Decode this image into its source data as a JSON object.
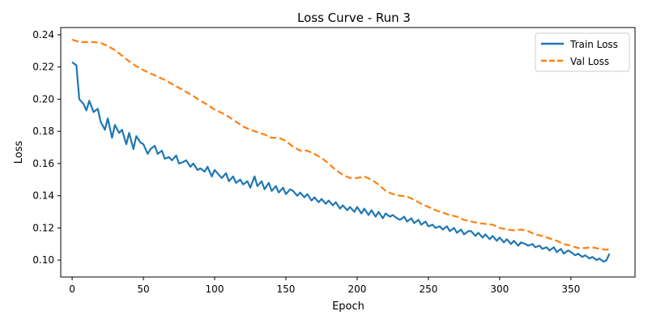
{
  "chart_data": {
    "type": "line",
    "title": "Loss Curve - Run 3",
    "xlabel": "Epoch",
    "ylabel": "Loss",
    "xlim": [
      -8,
      395
    ],
    "ylim": [
      0.0895,
      0.2445
    ],
    "xticks": [
      0,
      50,
      100,
      150,
      200,
      250,
      300,
      350
    ],
    "yticks": [
      0.1,
      0.12,
      0.14,
      0.16,
      0.18,
      0.2,
      0.22,
      0.24
    ],
    "yticks_labels": [
      "0.10",
      "0.12",
      "0.14",
      "0.16",
      "0.18",
      "0.20",
      "0.22",
      "0.24"
    ],
    "grid": false,
    "legend": "top-right",
    "series": [
      {
        "name": "Train Loss",
        "color": "#1f77b4",
        "style": "solid",
        "x": [
          0,
          3,
          5,
          8,
          10,
          12,
          15,
          18,
          20,
          23,
          25,
          28,
          30,
          33,
          35,
          38,
          40,
          43,
          45,
          48,
          50,
          53,
          55,
          58,
          60,
          63,
          65,
          68,
          70,
          73,
          75,
          78,
          80,
          83,
          85,
          88,
          90,
          93,
          95,
          98,
          100,
          103,
          105,
          108,
          110,
          113,
          115,
          118,
          120,
          123,
          125,
          128,
          130,
          133,
          135,
          138,
          140,
          143,
          145,
          148,
          150,
          153,
          155,
          158,
          160,
          163,
          165,
          168,
          170,
          173,
          175,
          178,
          180,
          183,
          185,
          188,
          190,
          193,
          195,
          198,
          200,
          203,
          205,
          208,
          210,
          213,
          215,
          218,
          220,
          223,
          225,
          228,
          230,
          233,
          235,
          238,
          240,
          243,
          245,
          248,
          250,
          253,
          255,
          258,
          260,
          263,
          265,
          268,
          270,
          273,
          275,
          278,
          280,
          283,
          285,
          288,
          290,
          293,
          295,
          298,
          300,
          303,
          305,
          308,
          310,
          313,
          315,
          318,
          320,
          323,
          325,
          328,
          330,
          333,
          335,
          338,
          340,
          343,
          345,
          348,
          350,
          353,
          355,
          358,
          360,
          363,
          365,
          368,
          370,
          373,
          375,
          377
        ],
        "values": [
          0.223,
          0.221,
          0.2,
          0.197,
          0.193,
          0.199,
          0.192,
          0.194,
          0.186,
          0.181,
          0.188,
          0.176,
          0.184,
          0.179,
          0.181,
          0.172,
          0.179,
          0.169,
          0.177,
          0.173,
          0.172,
          0.166,
          0.169,
          0.171,
          0.166,
          0.168,
          0.163,
          0.164,
          0.162,
          0.165,
          0.16,
          0.161,
          0.162,
          0.158,
          0.16,
          0.156,
          0.157,
          0.155,
          0.158,
          0.152,
          0.156,
          0.153,
          0.151,
          0.154,
          0.149,
          0.152,
          0.148,
          0.15,
          0.147,
          0.149,
          0.145,
          0.152,
          0.146,
          0.149,
          0.144,
          0.148,
          0.143,
          0.146,
          0.142,
          0.145,
          0.141,
          0.144,
          0.143,
          0.14,
          0.142,
          0.139,
          0.141,
          0.137,
          0.139,
          0.136,
          0.138,
          0.135,
          0.137,
          0.134,
          0.136,
          0.132,
          0.134,
          0.131,
          0.133,
          0.13,
          0.133,
          0.129,
          0.132,
          0.128,
          0.131,
          0.127,
          0.13,
          0.126,
          0.129,
          0.127,
          0.128,
          0.126,
          0.125,
          0.127,
          0.124,
          0.126,
          0.123,
          0.125,
          0.122,
          0.124,
          0.121,
          0.122,
          0.12,
          0.121,
          0.119,
          0.121,
          0.118,
          0.12,
          0.117,
          0.119,
          0.116,
          0.118,
          0.118,
          0.115,
          0.117,
          0.114,
          0.116,
          0.113,
          0.115,
          0.112,
          0.114,
          0.111,
          0.113,
          0.11,
          0.112,
          0.109,
          0.111,
          0.11,
          0.109,
          0.11,
          0.108,
          0.109,
          0.107,
          0.108,
          0.106,
          0.108,
          0.105,
          0.107,
          0.104,
          0.106,
          0.105,
          0.103,
          0.104,
          0.102,
          0.103,
          0.101,
          0.102,
          0.1,
          0.101,
          0.099,
          0.1,
          0.104
        ]
      },
      {
        "name": "Val Loss",
        "color": "#ff7f0e",
        "style": "dashed",
        "x": [
          0,
          5,
          10,
          15,
          20,
          25,
          30,
          35,
          40,
          45,
          50,
          55,
          60,
          65,
          70,
          75,
          80,
          85,
          90,
          95,
          100,
          105,
          110,
          115,
          120,
          125,
          130,
          135,
          140,
          145,
          150,
          155,
          160,
          165,
          170,
          175,
          180,
          185,
          190,
          195,
          200,
          205,
          210,
          215,
          220,
          225,
          230,
          235,
          240,
          245,
          250,
          255,
          260,
          265,
          270,
          275,
          280,
          285,
          290,
          295,
          300,
          305,
          310,
          315,
          320,
          325,
          330,
          335,
          340,
          345,
          350,
          355,
          360,
          365,
          370,
          375,
          377
        ],
        "values": [
          0.237,
          0.2355,
          0.2355,
          0.2355,
          0.235,
          0.233,
          0.2305,
          0.227,
          0.2235,
          0.2205,
          0.218,
          0.216,
          0.214,
          0.212,
          0.2095,
          0.207,
          0.2045,
          0.202,
          0.199,
          0.1965,
          0.1935,
          0.1915,
          0.189,
          0.186,
          0.183,
          0.181,
          0.1795,
          0.178,
          0.176,
          0.176,
          0.174,
          0.1705,
          0.168,
          0.168,
          0.166,
          0.1635,
          0.16,
          0.156,
          0.153,
          0.151,
          0.151,
          0.152,
          0.15,
          0.147,
          0.143,
          0.141,
          0.14,
          0.1395,
          0.1375,
          0.135,
          0.133,
          0.131,
          0.1295,
          0.128,
          0.127,
          0.125,
          0.124,
          0.123,
          0.1225,
          0.122,
          0.12,
          0.119,
          0.1185,
          0.119,
          0.118,
          0.116,
          0.115,
          0.1135,
          0.112,
          0.11,
          0.109,
          0.1075,
          0.1075,
          0.108,
          0.107,
          0.1065,
          0.107
        ]
      }
    ]
  }
}
